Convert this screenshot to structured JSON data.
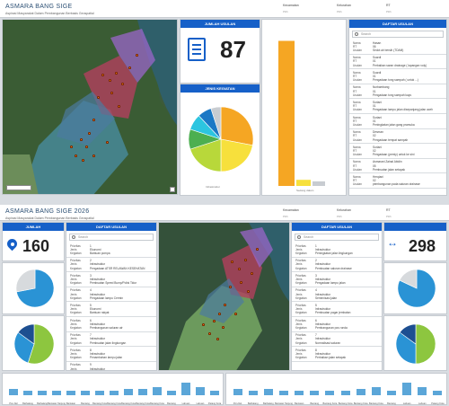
{
  "dash1": {
    "title": "ASMARA BANG SIGE",
    "subtitle": "Aspirasi Masyarakat Dalam Pembangunan Berbasis Geospatial",
    "filters": [
      {
        "label": "Kecamatan",
        "value": "Pilih"
      },
      {
        "label": "Kelurahan",
        "value": "Pilih"
      },
      {
        "label": "RT",
        "value": "Pilih"
      }
    ],
    "total_title": "JUMLAH USULAN",
    "total_value": "87",
    "pie_title": "JENIS KEGIATAN",
    "pie_caption": "Infrastruktur",
    "bar_caption": "Sedang dalam",
    "list_title": "DAFTAR USULAN",
    "search_placeholder": "Search",
    "items": [
      {
        "nama": "Hasan",
        "rt": "06",
        "usulan": "Sedot air bersih (TDAM)"
      },
      {
        "nama": "Suardi",
        "rt": "01",
        "usulan": "Perbaikan saran drainage ( lapangan voly)"
      },
      {
        "nama": "Suardi",
        "rt": "01",
        "usulan": "Pengadaan tong sampah ( untuk ...)"
      },
      {
        "nama": "Nurbambang",
        "rt": "01",
        "usulan": "Pengadaan tong sampah kayu"
      },
      {
        "nama": "Suriani",
        "rt": "01",
        "usulan": "Pengadaan lampu jalan disepanjang jalan aceh"
      },
      {
        "nama": "Suriani",
        "rt": "01",
        "usulan": "Peningkatan jalan gang pramuka"
      },
      {
        "nama": "Desman",
        "rt": "02",
        "usulan": "Pengadaan tempat sampah"
      },
      {
        "nama": "Suriani",
        "rt": "02",
        "usulan": "Pengadaan (pemiy) untuk ke sini"
      },
      {
        "nama": "Asmarani Zainal Abidin",
        "rt": "05",
        "usulan": "Pembuatan jalan setapak"
      },
      {
        "nama": "Herqiani",
        "rt": "02",
        "usulan": "pembangunan pada saluran drainase"
      }
    ],
    "pie": [
      {
        "value": 28,
        "color": "#f5a623"
      },
      {
        "value": 22,
        "color": "#f7e03c"
      },
      {
        "value": 20,
        "color": "#b8d83a"
      },
      {
        "value": 10,
        "color": "#4caf50"
      },
      {
        "value": 8,
        "color": "#2cc5e0"
      },
      {
        "value": 7,
        "color": "#1b78c5"
      },
      {
        "value": 5,
        "color": "#c8ccd1"
      }
    ],
    "bars": [
      {
        "value": 95,
        "color": "#f5a623"
      },
      {
        "value": 4,
        "color": "#f7e03c"
      },
      {
        "value": 3,
        "color": "#c8ccd1"
      }
    ]
  },
  "dash2": {
    "title": "ASMARA BANG SIGE 2026",
    "subtitle": "Aspirasi Masyarakat Dalam Pembangunan Berbasis Geospatial",
    "filters": [
      {
        "label": "Kecamatan",
        "value": "Pilih"
      },
      {
        "label": "Kelurahan",
        "value": "Pilih"
      },
      {
        "label": "RT",
        "value": "Pilih"
      }
    ],
    "left_total_title": "JUMLAH",
    "left_total_value": "160",
    "right_total_value": "298",
    "list1_title": "DAFTAR USULAN",
    "list2_title": "DAFTAR USULAN",
    "search_placeholder": "Search",
    "list1": [
      {
        "prioritas": "1",
        "jenis": "Ekonomi",
        "kegiatan": "Bantuan pompa"
      },
      {
        "prioritas": "2",
        "jenis": "Infrastruktur",
        "kegiatan": "Pengadaan ATSR RELAWAN KESEHATAN"
      },
      {
        "prioritas": "3",
        "jenis": "Infrastruktur",
        "kegiatan": "Pembuatan Speed Bump/Polisi Tidur"
      },
      {
        "prioritas": "4",
        "jenis": "Infrastruktur",
        "kegiatan": "Pengadaan lampu Cermin"
      },
      {
        "prioritas": "5",
        "jenis": "Ekonomi",
        "kegiatan": "Bantuan rakyat"
      },
      {
        "prioritas": "6",
        "jenis": "Infrastruktur",
        "kegiatan": "Pembangunan saluran air"
      },
      {
        "prioritas": "7",
        "jenis": "Infrastruktur",
        "kegiatan": "Pembuatan jalan lingkungan"
      },
      {
        "prioritas": "8",
        "jenis": "Infrastruktur",
        "kegiatan": "Penambahan lampu jalan"
      },
      {
        "prioritas": "9",
        "jenis": "Infrastruktur",
        "kegiatan": "Pembangunan gorong-gorong"
      }
    ],
    "list2": [
      {
        "prioritas": "1",
        "jenis": "Infrastruktur",
        "kegiatan": "Peningkatan jalan lingkungan"
      },
      {
        "prioritas": "2",
        "jenis": "Infrastruktur",
        "kegiatan": "Pembuatan saluran drainase"
      },
      {
        "prioritas": "3",
        "jenis": "Infrastruktur",
        "kegiatan": "Pengadaan lampu jalan"
      },
      {
        "prioritas": "4",
        "jenis": "Infrastruktur",
        "kegiatan": "Semenisasi jalan"
      },
      {
        "prioritas": "5",
        "jenis": "Infrastruktur",
        "kegiatan": "Pembuatan pagar jembatan"
      },
      {
        "prioritas": "6",
        "jenis": "Infrastruktur",
        "kegiatan": "Pembangunan pos ronda"
      },
      {
        "prioritas": "7",
        "jenis": "Infrastruktur",
        "kegiatan": "Normalisasi saluran"
      },
      {
        "prioritas": "8",
        "jenis": "Infrastruktur",
        "kegiatan": "Perbaikan jalan setapak"
      }
    ],
    "pie_left_a": [
      {
        "value": 72,
        "color": "#2a93d5"
      },
      {
        "value": 28,
        "color": "#d7dadd"
      }
    ],
    "pie_left_b": [
      {
        "value": 55,
        "color": "#8dc63f"
      },
      {
        "value": 30,
        "color": "#2a93d5"
      },
      {
        "value": 15,
        "color": "#1d4f91"
      }
    ],
    "pie_right_a": [
      {
        "value": 82,
        "color": "#2a93d5"
      },
      {
        "value": 18,
        "color": "#d7dadd"
      }
    ],
    "pie_right_b": [
      {
        "value": 50,
        "color": "#8dc63f"
      },
      {
        "value": 35,
        "color": "#2a93d5"
      },
      {
        "value": 15,
        "color": "#1d4f91"
      }
    ],
    "left_bars": {
      "labels": [
        "Pon-Nel",
        "Bathalang",
        "Bathalang",
        "Bantaian Tanjung",
        "Bantaian",
        "Bantang",
        "Bantang Kota",
        "Bantang Kota",
        "Bantang Kota",
        "Bantang Kota",
        "Bantang Kota",
        "Bantang",
        "Labuan",
        "Labuan",
        "Patang Kota"
      ],
      "values": [
        3,
        2,
        2,
        2,
        2,
        2,
        2,
        2,
        3,
        3,
        4,
        2,
        6,
        4,
        2
      ]
    },
    "right_bars": {
      "labels": [
        "Pon-Nel",
        "Bathalang",
        "Bathalang",
        "Bantaian Tanjung",
        "Bantaian",
        "Bantang",
        "Bantang Kota",
        "Bantang Kota",
        "Bantang Kota",
        "Bantang Kota",
        "Bantang",
        "Labuan",
        "Labuan",
        "Patang Kota"
      ],
      "values": [
        3,
        2,
        3,
        2,
        2,
        2,
        2,
        2,
        3,
        4,
        2,
        6,
        4,
        2
      ]
    }
  },
  "labels": {
    "nama": "Nama",
    "rt": "RT",
    "usulan": "Usulan",
    "prioritas": "Prioritas",
    "jenis": "Jenis",
    "kegiatan": "Kegiatan"
  }
}
